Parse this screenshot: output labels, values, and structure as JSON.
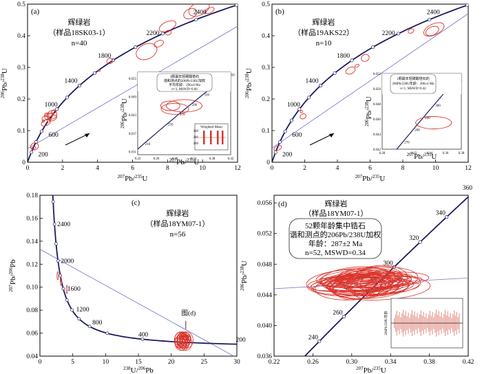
{
  "colors": {
    "concordia": "#1a1a5e",
    "discordia": "#7b7fd6",
    "ellipse": "#d9342b",
    "inset_box": "#555555"
  },
  "chart_data": [
    {
      "id": "a",
      "type": "scatter",
      "panel_label": "(a)",
      "title": "辉绿岩",
      "sample": "（样品18SK03-1）",
      "n_label": "n=40",
      "xlabel": "207Pb/235U",
      "ylabel": "206Pb/238U",
      "xlim": [
        0,
        12
      ],
      "ylim": [
        0,
        0.5
      ],
      "xticks": [
        "0",
        "2",
        "4",
        "6",
        "8",
        "10",
        "12"
      ],
      "yticks": [
        "0",
        "0.1",
        "0.2",
        "0.3",
        "0.4",
        "0.5"
      ],
      "age_labels": [
        "200",
        "600",
        "1000",
        "1400",
        "1800",
        "2200",
        "2400"
      ],
      "discordia": {
        "x": [
          0,
          12
        ],
        "y": [
          0.043,
          0.43
        ]
      },
      "ellipses": [
        {
          "x": 0.35,
          "y": 0.045
        },
        {
          "x": 0.4,
          "y": 0.05
        },
        {
          "x": 0.9,
          "y": 0.13
        },
        {
          "x": 1.0,
          "y": 0.14
        },
        {
          "x": 1.05,
          "y": 0.125
        },
        {
          "x": 1.1,
          "y": 0.15
        },
        {
          "x": 1.2,
          "y": 0.145
        },
        {
          "x": 1.25,
          "y": 0.135
        },
        {
          "x": 1.3,
          "y": 0.15
        },
        {
          "x": 1.4,
          "y": 0.15
        },
        {
          "x": 1.5,
          "y": 0.16
        },
        {
          "x": 1.45,
          "y": 0.14
        },
        {
          "x": 4.1,
          "y": 0.29
        },
        {
          "x": 4.7,
          "y": 0.32
        },
        {
          "x": 6.8,
          "y": 0.35
        },
        {
          "x": 7.5,
          "y": 0.375
        },
        {
          "x": 8.0,
          "y": 0.43
        },
        {
          "x": 8.05,
          "y": 0.41
        },
        {
          "x": 9.3,
          "y": 0.47
        },
        {
          "x": 9.8,
          "y": 0.485
        },
        {
          "x": 10.4,
          "y": 0.48
        }
      ],
      "inset": {
        "text": [
          "3颗最年轻碳酸锆石",
          "谐和测点的206Pb/238U加权",
          "平均年龄：290±6 Ma",
          "n=3, MSWD=0.66"
        ],
        "xlim": [
          0.22,
          0.42
        ],
        "ylim": [
          0.03,
          0.057
        ],
        "xticks": [
          "0.22",
          "0.26",
          "0.30",
          "0.34",
          "0.38",
          "0.42"
        ],
        "yticks": [
          "0.031",
          "0.037",
          "0.043",
          "0.049",
          "0.055"
        ],
        "age_labels": [
          "210",
          "250",
          "270",
          "290",
          "310",
          "330",
          "350"
        ],
        "ellipses": [
          {
            "x": 0.32,
            "y": 0.046
          },
          {
            "x": 0.3,
            "y": 0.045
          },
          {
            "x": 0.29,
            "y": 0.046
          }
        ],
        "sub_title": "Weighted Mean",
        "sub_ylabel": "206Pb/238U年龄/Ma",
        "sub_yticks": [
          "300",
          "280",
          "260"
        ]
      }
    },
    {
      "id": "b",
      "type": "scatter",
      "panel_label": "(b)",
      "title": "辉绿岩",
      "sample": "（样品19AKS22）",
      "n_label": "n=10",
      "xlabel": "207Pb/235U",
      "ylabel": "206Pb/238U",
      "xlim": [
        0,
        12
      ],
      "ylim": [
        0,
        0.5
      ],
      "xticks": [
        "0",
        "2",
        "4",
        "6",
        "8",
        "10",
        "12"
      ],
      "yticks": [
        "0",
        "0.1",
        "0.2",
        "0.3",
        "0.4",
        "0.5"
      ],
      "age_labels": [
        "200",
        "600",
        "1000",
        "1400",
        "1800",
        "2200",
        "2400"
      ],
      "discordia": {
        "x": [
          0,
          12
        ],
        "y": [
          0.045,
          0.47
        ]
      },
      "ellipses": [
        {
          "x": 0.35,
          "y": 0.045
        },
        {
          "x": 1.8,
          "y": 0.16
        },
        {
          "x": 1.9,
          "y": 0.145
        },
        {
          "x": 4.8,
          "y": 0.29
        },
        {
          "x": 5.2,
          "y": 0.305
        },
        {
          "x": 5.7,
          "y": 0.33
        },
        {
          "x": 8.5,
          "y": 0.415
        },
        {
          "x": 9.8,
          "y": 0.415
        },
        {
          "x": 9.9,
          "y": 0.42
        }
      ],
      "inset": {
        "text": [
          "1颗最年轻碳酸锆石的",
          "206Pb/238U年龄：286±4 Ma",
          "n=1, MSWD=0.42"
        ],
        "xlim": [
          0.28,
          0.38
        ],
        "ylim": [
          0.042,
          0.052
        ],
        "xticks": [
          "0.28",
          "0.32",
          "0.34",
          "0.36",
          "0.38"
        ],
        "yticks": [
          "0.042",
          "0.044",
          "0.046",
          "0.048",
          "0.050",
          "0.052"
        ],
        "age_labels": [
          "270",
          "280",
          "290",
          "300",
          "310",
          "320"
        ],
        "ellipses": [
          {
            "x": 0.345,
            "y": 0.0455
          }
        ]
      }
    },
    {
      "id": "c",
      "type": "scatter",
      "panel_label": "(c)",
      "title": "辉绿岩",
      "sample": "（样品18YM07-1）",
      "n_label": "n=56",
      "xlabel": "238U/206Pb",
      "ylabel": "207Pb/206Pb",
      "xlim": [
        0,
        30
      ],
      "ylim": [
        0.04,
        0.18
      ],
      "xticks": [
        "0",
        "5",
        "10",
        "15",
        "20",
        "25",
        "30"
      ],
      "yticks": [
        "0.04",
        "0.06",
        "0.08",
        "0.10",
        "0.12",
        "0.14",
        "0.16",
        "0.18"
      ],
      "age_labels": [
        "2400",
        "2000",
        "1600",
        "1200",
        "800",
        "400",
        "200"
      ],
      "annotation": "图(d)",
      "discordia": {
        "x": [
          0,
          30
        ],
        "y": [
          0.133,
          0.0385
        ]
      },
      "cluster_center": {
        "x": 21.8,
        "y": 0.054
      }
    },
    {
      "id": "d",
      "type": "scatter",
      "panel_label": "(d)",
      "title": "辉绿岩",
      "sample": "（样品18YM07-1）",
      "box_text": [
        "52颗年龄集中锆石",
        "谐和测点的206Pb/238U加权",
        "年龄：287±2 Ma",
        "n=52, MSWD=0.34"
      ],
      "xlabel": "207Pb/235U",
      "ylabel": "206Pb/238U",
      "xlim": [
        0.22,
        0.42
      ],
      "ylim": [
        0.036,
        0.057
      ],
      "xticks": [
        "0.22",
        "0.26",
        "0.30",
        "0.34",
        "0.38",
        "0.42"
      ],
      "yticks": [
        "0.036",
        "0.040",
        "0.044",
        "0.048",
        "0.052",
        "0.056"
      ],
      "age_labels": [
        "240",
        "260",
        "300",
        "320",
        "340",
        "360"
      ],
      "cluster_center": {
        "x": 0.315,
        "y": 0.0455
      },
      "sub_ylabel": "206Pb/238U年龄",
      "sub_value_ma": 287
    }
  ]
}
